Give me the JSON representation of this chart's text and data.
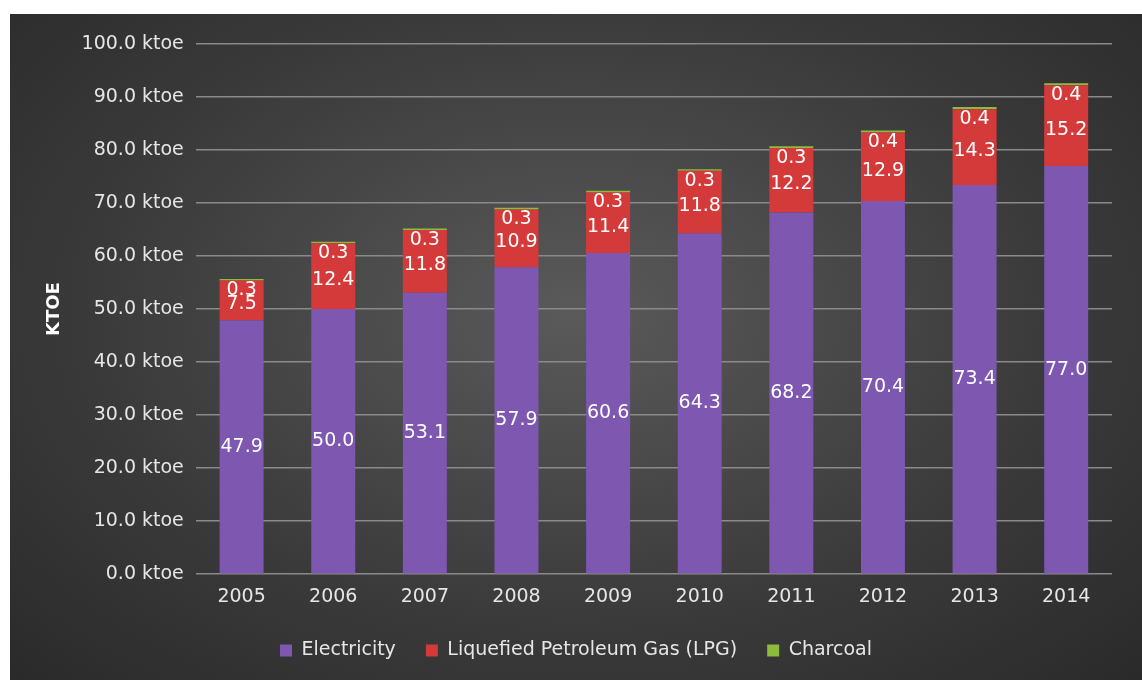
{
  "chart_data": {
    "type": "bar",
    "stacked": true,
    "ylabel": "KTOE",
    "categories": [
      "2005",
      "2006",
      "2007",
      "2008",
      "2009",
      "2010",
      "2011",
      "2012",
      "2013",
      "2014"
    ],
    "series": [
      {
        "name": "Electricity",
        "color": "#7d57b0",
        "values": [
          47.9,
          50.0,
          53.1,
          57.9,
          60.6,
          64.3,
          68.2,
          70.4,
          73.4,
          77.0
        ],
        "value_labels": [
          "47.9",
          "50.0",
          "53.1",
          "57.9",
          "60.6",
          "64.3",
          "68.2",
          "70.4",
          "73.4",
          "77.0"
        ]
      },
      {
        "name": "Liquefied Petroleum Gas (LPG)",
        "color": "#d43a3a",
        "values": [
          7.5,
          12.4,
          11.8,
          10.9,
          11.4,
          11.8,
          12.2,
          12.9,
          14.3,
          15.2
        ],
        "value_labels": [
          "7.5",
          "12.4",
          "11.8",
          "10.9",
          "11.4",
          "11.8",
          "12.2",
          "12.9",
          "14.3",
          "15.2"
        ]
      },
      {
        "name": "Charcoal",
        "color": "#8dbb3c",
        "values": [
          0.3,
          0.3,
          0.3,
          0.3,
          0.3,
          0.3,
          0.3,
          0.4,
          0.4,
          0.4
        ],
        "value_labels": [
          "0.3",
          "0.3",
          "0.3",
          "0.3",
          "0.3",
          "0.3",
          "0.3",
          "0.4",
          "0.4",
          "0.4"
        ]
      }
    ],
    "ylim": [
      0,
      100
    ],
    "yticks": [
      {
        "value": 0,
        "label": "0.0 ktoe"
      },
      {
        "value": 10,
        "label": "10.0 ktoe"
      },
      {
        "value": 20,
        "label": "20.0 ktoe"
      },
      {
        "value": 30,
        "label": "30.0 ktoe"
      },
      {
        "value": 40,
        "label": "40.0 ktoe"
      },
      {
        "value": 50,
        "label": "50.0 ktoe"
      },
      {
        "value": 60,
        "label": "60.0 ktoe"
      },
      {
        "value": 70,
        "label": "70.0 ktoe"
      },
      {
        "value": 80,
        "label": "80.0 ktoe"
      },
      {
        "value": 90,
        "label": "90.0 ktoe"
      },
      {
        "value": 100,
        "label": "100.0 ktoe"
      }
    ],
    "grid": "y",
    "legend": "bottom"
  }
}
